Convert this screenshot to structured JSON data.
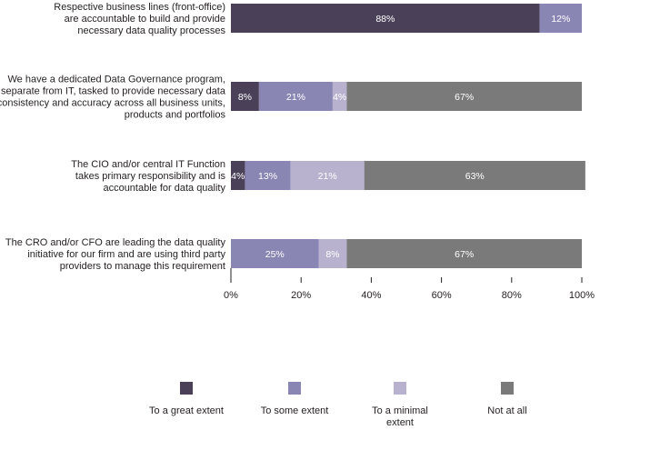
{
  "chart_data": {
    "type": "bar",
    "orientation": "horizontal",
    "stacked": true,
    "categories": [
      "Respective business lines (front-office) are accountable to build and provide necessary data quality processes",
      "We have a dedicated Data Governance program, separate from IT, tasked to provide necessary data consistency and accuracy across all business units, products and portfolios",
      "The CIO and/or central IT Function takes primary responsibility and is accountable for data quality",
      "The CRO and/or CFO are leading the data quality initiative for our firm and are using third party providers to manage this requirement"
    ],
    "category_lines": [
      [
        "Respective business lines (front-office)",
        "are accountable to build and provide",
        "necessary data quality processes"
      ],
      [
        "We have a dedicated Data Governance program,",
        "separate from IT, tasked to provide necessary data",
        "consistency and accuracy across all business units,",
        "products and portfolios"
      ],
      [
        "The CIO and/or central IT Function",
        "takes primary responsibility and is",
        "accountable for data quality"
      ],
      [
        "The CRO and/or CFO are leading the data quality",
        "initiative for our firm and are using third party",
        "providers to manage this requirement"
      ]
    ],
    "series": [
      {
        "name": "To a great extent",
        "legend_lines": [
          "To a great extent"
        ],
        "color": "#4a4058",
        "values": [
          88,
          8,
          4,
          0
        ]
      },
      {
        "name": "To some extent",
        "legend_lines": [
          "To some extent"
        ],
        "color": "#8a86b4",
        "values": [
          12,
          21,
          13,
          25
        ]
      },
      {
        "name": "To a minimal extent",
        "legend_lines": [
          "To a minimal",
          "extent"
        ],
        "color": "#b8b2cf",
        "values": [
          0,
          4,
          21,
          8
        ]
      },
      {
        "name": "Not at all",
        "legend_lines": [
          "Not at all"
        ],
        "color": "#7a7a7a",
        "values": [
          0,
          67,
          63,
          67
        ]
      }
    ],
    "value_labels": [
      [
        "88%",
        "12%",
        "",
        ""
      ],
      [
        "8%",
        "21%",
        "4%",
        "67%"
      ],
      [
        "4%",
        "13%",
        "21%",
        "63%"
      ],
      [
        "",
        "25%",
        "8%",
        "67%"
      ]
    ],
    "xlim": [
      0,
      100
    ],
    "ticks": [
      0,
      20,
      40,
      60,
      80,
      100
    ],
    "tick_labels": [
      "0%",
      "20%",
      "40%",
      "60%",
      "80%",
      "100%"
    ],
    "title": "",
    "xlabel": "",
    "ylabel": "",
    "legend_position": "bottom",
    "grid": false
  }
}
